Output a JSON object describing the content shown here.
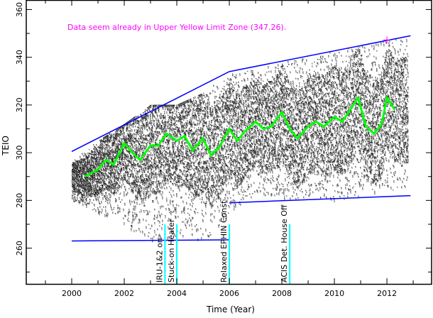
{
  "chart_data": {
    "type": "scatter",
    "xlabel": "Time (Year)",
    "ylabel": "TEIO",
    "xlim": [
      1998.27,
      2013.7
    ],
    "ylim": [
      245,
      364
    ],
    "x_ticks": [
      2000,
      2002,
      2004,
      2006,
      2008,
      2010,
      2012
    ],
    "y_ticks": [
      260,
      280,
      300,
      320,
      340,
      360
    ],
    "grid": false,
    "annotation": "Data seem already in Upper Yellow  Limit Zone (347.26).",
    "colors": {
      "data": "#000000",
      "smooth": "#00ff00",
      "limits": "#0000ff",
      "events": "#00ffff",
      "annotation": "#ff00ff"
    },
    "data_envelope": {
      "x": [
        2000,
        2001,
        2002,
        2003,
        2004,
        2005,
        2006,
        2007,
        2008,
        2009,
        2010,
        2011,
        2012,
        2012.8
      ],
      "min": [
        280,
        275,
        270,
        262,
        265,
        262,
        275,
        283,
        280,
        281,
        280,
        282,
        284,
        285
      ],
      "max": [
        297,
        305,
        312,
        320,
        320,
        325,
        334,
        335,
        338,
        340,
        343,
        345,
        347,
        348
      ]
    },
    "smooth_series": {
      "x": [
        2000.5,
        2001,
        2001.3,
        2001.6,
        2002,
        2002.3,
        2002.6,
        2003,
        2003.3,
        2003.6,
        2004,
        2004.3,
        2004.6,
        2005,
        2005.3,
        2005.6,
        2006,
        2006.3,
        2006.6,
        2007,
        2007.3,
        2007.6,
        2008,
        2008.3,
        2008.6,
        2009,
        2009.3,
        2009.6,
        2010,
        2010.3,
        2010.6,
        2010.9,
        2011.2,
        2011.5,
        2011.8,
        2012,
        2012.3
      ],
      "y": [
        290,
        293,
        297,
        295,
        304,
        300,
        297,
        303,
        303,
        308,
        305,
        307,
        301,
        306,
        299,
        302,
        310,
        305,
        309,
        313,
        310,
        311,
        317,
        310,
        306,
        311,
        313,
        311,
        315,
        313,
        318,
        323,
        311,
        308,
        312,
        323,
        318
      ]
    },
    "upper_limit": {
      "x": [
        2000,
        2006,
        2012.9
      ],
      "y": [
        300.5,
        334,
        349
      ]
    },
    "lower_limit": [
      {
        "x": [
          2000,
          2006
        ],
        "y": [
          263,
          263.5
        ]
      },
      {
        "x": [
          2006,
          2012.9
        ],
        "y": [
          279,
          282
        ]
      }
    ],
    "marker": {
      "x": 2012,
      "y": 347.26
    },
    "events": [
      {
        "x": 2003.55,
        "label": "IRU-1&2 on"
      },
      {
        "x": 2004.0,
        "label": "Stuck-on Heater"
      },
      {
        "x": 2006.0,
        "label": "Relaxed EPHIN Const"
      },
      {
        "x": 2008.3,
        "label": "ACIS Det. House Off"
      }
    ]
  }
}
